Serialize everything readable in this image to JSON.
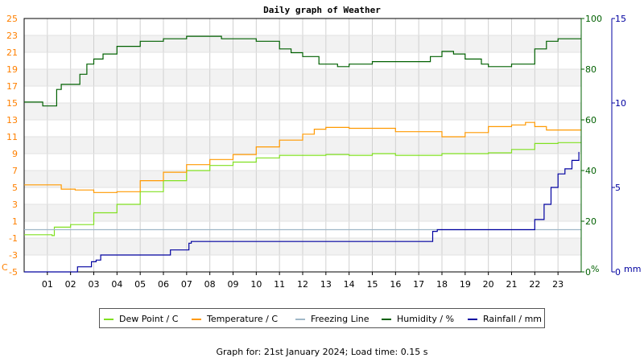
{
  "chart_data": {
    "type": "line",
    "title": "Daily graph of Weather",
    "x_ticks": [
      "01",
      "02",
      "03",
      "04",
      "05",
      "06",
      "07",
      "08",
      "09",
      "10",
      "11",
      "12",
      "13",
      "14",
      "15",
      "16",
      "17",
      "18",
      "19",
      "20",
      "21",
      "22",
      "23"
    ],
    "x_range": [
      0,
      24
    ],
    "grid": true,
    "legend_position": "bottom-center",
    "axes": {
      "temperature": {
        "unit_label": "C",
        "range": [
          -5,
          25
        ],
        "ticks": [
          "25",
          "23",
          "21",
          "19",
          "17",
          "15",
          "13",
          "11",
          "9",
          "7",
          "5",
          "3",
          "1",
          "-1",
          "-3",
          "-5"
        ],
        "color": "#ff8000"
      },
      "humidity": {
        "unit_label": "%",
        "range": [
          0,
          100
        ],
        "ticks": [
          "100",
          "80",
          "60",
          "40",
          "20",
          "0"
        ],
        "color": "#006000"
      },
      "rainfall": {
        "unit_label": "mm",
        "range": [
          0,
          15
        ],
        "ticks": [
          "15",
          "10",
          "5",
          "0"
        ],
        "color": "#0000a0"
      }
    },
    "series": [
      {
        "name": "Dew Point / C",
        "axis": "temperature",
        "color": "#80e020",
        "points": [
          [
            0,
            -0.6
          ],
          [
            1.2,
            -0.7
          ],
          [
            1.3,
            0.3
          ],
          [
            2,
            0.6
          ],
          [
            3,
            2
          ],
          [
            4,
            3
          ],
          [
            5,
            4.5
          ],
          [
            6,
            5.8
          ],
          [
            7,
            7
          ],
          [
            8,
            7.6
          ],
          [
            9,
            8
          ],
          [
            10,
            8.5
          ],
          [
            11,
            8.8
          ],
          [
            12,
            8.8
          ],
          [
            13,
            8.9
          ],
          [
            14,
            8.8
          ],
          [
            15,
            9
          ],
          [
            16,
            8.8
          ],
          [
            17,
            8.8
          ],
          [
            18,
            9
          ],
          [
            19,
            9
          ],
          [
            20,
            9.1
          ],
          [
            21,
            9.5
          ],
          [
            22,
            10.2
          ],
          [
            23,
            10.3
          ],
          [
            24,
            10.3
          ]
        ]
      },
      {
        "name": "Temperature / C",
        "axis": "temperature",
        "color": "#ff9900",
        "points": [
          [
            0,
            5.3
          ],
          [
            1.3,
            5.3
          ],
          [
            1.6,
            4.8
          ],
          [
            2.2,
            4.7
          ],
          [
            3,
            4.4
          ],
          [
            3.6,
            4.4
          ],
          [
            4,
            4.5
          ],
          [
            5,
            5.8
          ],
          [
            6,
            6.8
          ],
          [
            7,
            7.7
          ],
          [
            8,
            8.3
          ],
          [
            9,
            8.9
          ],
          [
            10,
            9.8
          ],
          [
            11,
            10.6
          ],
          [
            12,
            11.3
          ],
          [
            12.5,
            11.9
          ],
          [
            13,
            12.1
          ],
          [
            14,
            12
          ],
          [
            15,
            12
          ],
          [
            16,
            11.6
          ],
          [
            17,
            11.6
          ],
          [
            18,
            11
          ],
          [
            19,
            11.5
          ],
          [
            20,
            12.2
          ],
          [
            21,
            12.4
          ],
          [
            21.6,
            12.7
          ],
          [
            22,
            12.2
          ],
          [
            22.5,
            11.8
          ],
          [
            23,
            11.8
          ],
          [
            24,
            11.8
          ]
        ]
      },
      {
        "name": "Freezing Line",
        "axis": "temperature",
        "color": "#a0b8c8",
        "points": [
          [
            0,
            0
          ],
          [
            24,
            0
          ]
        ]
      },
      {
        "name": "Humidity / %",
        "axis": "humidity",
        "color": "#006000",
        "points": [
          [
            0,
            67
          ],
          [
            0.7,
            67
          ],
          [
            0.8,
            65.5
          ],
          [
            1.2,
            65.5
          ],
          [
            1.4,
            72
          ],
          [
            1.6,
            74
          ],
          [
            2,
            74
          ],
          [
            2.4,
            78
          ],
          [
            2.7,
            82
          ],
          [
            3,
            84
          ],
          [
            3.4,
            86
          ],
          [
            4,
            89
          ],
          [
            4.5,
            89
          ],
          [
            5,
            91
          ],
          [
            6,
            92
          ],
          [
            7,
            93
          ],
          [
            8,
            93
          ],
          [
            8.5,
            92
          ],
          [
            9,
            92
          ],
          [
            10,
            91
          ],
          [
            11,
            88
          ],
          [
            11.5,
            86.5
          ],
          [
            12,
            85
          ],
          [
            12.7,
            82
          ],
          [
            13.5,
            81
          ],
          [
            14,
            82
          ],
          [
            15,
            83
          ],
          [
            16,
            83
          ],
          [
            17,
            83
          ],
          [
            17.5,
            85
          ],
          [
            18,
            87
          ],
          [
            18.5,
            86
          ],
          [
            19,
            84
          ],
          [
            19.7,
            82
          ],
          [
            20,
            81
          ],
          [
            21,
            82
          ],
          [
            21.5,
            82
          ],
          [
            22,
            88
          ],
          [
            22.5,
            91
          ],
          [
            23,
            92
          ],
          [
            24,
            92
          ]
        ]
      },
      {
        "name": "Rainfall / mm",
        "axis": "rainfall",
        "color": "#0000a0",
        "points": [
          [
            0,
            0
          ],
          [
            2.2,
            0
          ],
          [
            2.3,
            0.3
          ],
          [
            2.8,
            0.3
          ],
          [
            2.9,
            0.6
          ],
          [
            3.1,
            0.7
          ],
          [
            3.3,
            1
          ],
          [
            5,
            1
          ],
          [
            6.2,
            1
          ],
          [
            6.3,
            1.3
          ],
          [
            6.9,
            1.3
          ],
          [
            7.1,
            1.7
          ],
          [
            7.2,
            1.8
          ],
          [
            14,
            1.8
          ],
          [
            17.3,
            1.8
          ],
          [
            17.6,
            2.4
          ],
          [
            17.8,
            2.5
          ],
          [
            18,
            2.5
          ],
          [
            21.8,
            2.5
          ],
          [
            22,
            3.1
          ],
          [
            22.4,
            4
          ],
          [
            22.7,
            5
          ],
          [
            23,
            5.8
          ],
          [
            23.3,
            6.1
          ],
          [
            23.6,
            6.6
          ],
          [
            23.9,
            7.1
          ]
        ]
      }
    ]
  },
  "footer": {
    "text": "Graph for: 21st January 2024; Load time: 0.15 s"
  }
}
